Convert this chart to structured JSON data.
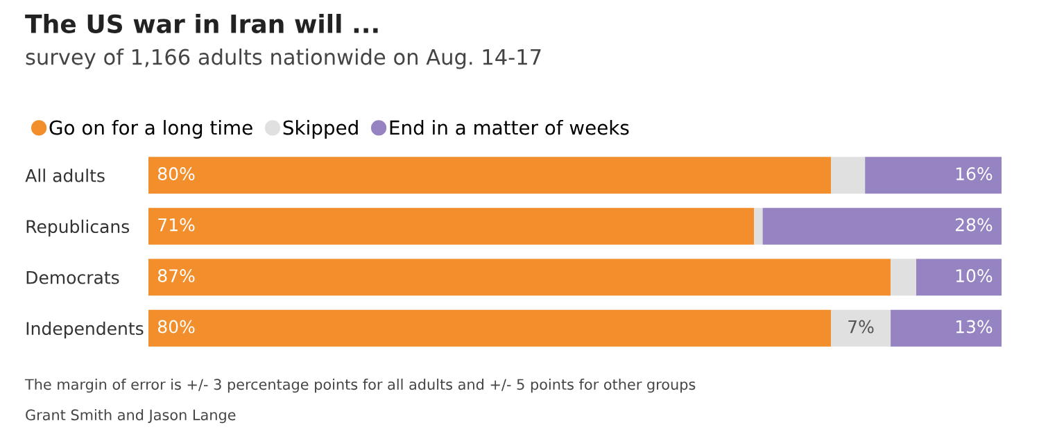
{
  "chart_data": {
    "type": "bar",
    "orientation": "horizontal",
    "stacked": true,
    "title": "The US war in Iran will ...",
    "subtitle": "survey of 1,166 adults nationwide on Aug. 14-17",
    "categories": [
      "All adults",
      "Republicans",
      "Democrats",
      "Independents"
    ],
    "series": [
      {
        "name": "Go on for a long time",
        "color": "#f28e2b",
        "values": [
          80,
          71,
          87,
          80
        ],
        "value_labels": [
          "80%",
          "71%",
          "87%",
          "80%"
        ]
      },
      {
        "name": "Skipped",
        "color": "#e0e0e0",
        "values": [
          4,
          1,
          3,
          7
        ],
        "value_labels": [
          null,
          null,
          null,
          "7%"
        ]
      },
      {
        "name": "End in a matter of weeks",
        "color": "#9683c1",
        "values": [
          16,
          28,
          10,
          13
        ],
        "value_labels": [
          "16%",
          "28%",
          "10%",
          "13%"
        ]
      }
    ],
    "legend": "top left",
    "marker": "circle",
    "annotations": [
      "The margin of error is +/- 3 percentage points for all adults and +/- 5 points for other groups",
      "Grant Smith and Jason Lange"
    ]
  }
}
